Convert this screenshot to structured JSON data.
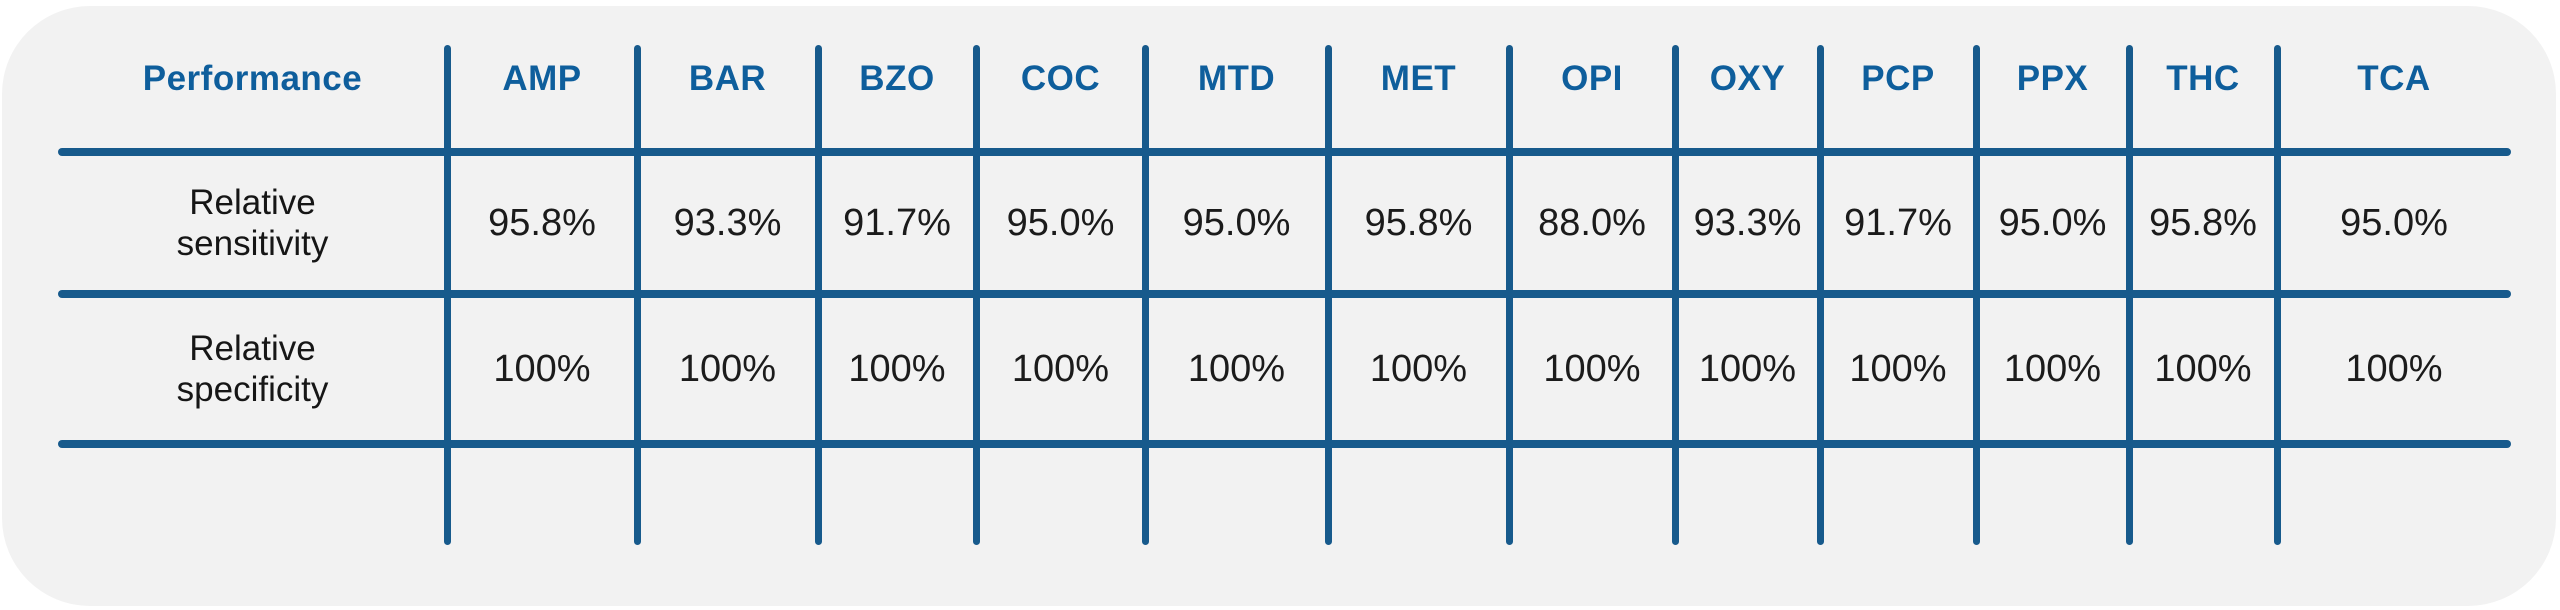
{
  "colors": {
    "page_bg": "#ffffff",
    "card_bg": "#f2f2f2",
    "grid_line": "#175a8c",
    "header_text": "#0e5e9c",
    "value_text": "#1b1b1b"
  },
  "table": {
    "header": {
      "label": "Performance",
      "columns": [
        "AMP",
        "BAR",
        "BZO",
        "COC",
        "MTD",
        "MET",
        "OPI",
        "OXY",
        "PCP",
        "PPX",
        "THC",
        "TCA"
      ]
    },
    "rows": [
      {
        "label": "Relative\nsensitivity",
        "values": [
          "95.8%",
          "93.3%",
          "91.7%",
          "95.0%",
          "95.0%",
          "95.8%",
          "88.0%",
          "93.3%",
          "91.7%",
          "95.0%",
          "95.8%",
          "95.0%"
        ]
      },
      {
        "label": "Relative\nspecificity",
        "values": [
          "100%",
          "100%",
          "100%",
          "100%",
          "100%",
          "100%",
          "100%",
          "100%",
          "100%",
          "100%",
          "100%",
          "100%"
        ]
      }
    ]
  },
  "chart_data": {
    "type": "table",
    "title": "Performance",
    "columns": [
      "Performance",
      "AMP",
      "BAR",
      "BZO",
      "COC",
      "MTD",
      "MET",
      "OPI",
      "OXY",
      "PCP",
      "PPX",
      "THC",
      "TCA"
    ],
    "rows": [
      [
        "Relative sensitivity",
        "95.8%",
        "93.3%",
        "91.7%",
        "95.0%",
        "95.0%",
        "95.8%",
        "88.0%",
        "93.3%",
        "91.7%",
        "95.0%",
        "95.8%",
        "95.0%"
      ],
      [
        "Relative specificity",
        "100%",
        "100%",
        "100%",
        "100%",
        "100%",
        "100%",
        "100%",
        "100%",
        "100%",
        "100%",
        "100%",
        "100%"
      ]
    ]
  }
}
